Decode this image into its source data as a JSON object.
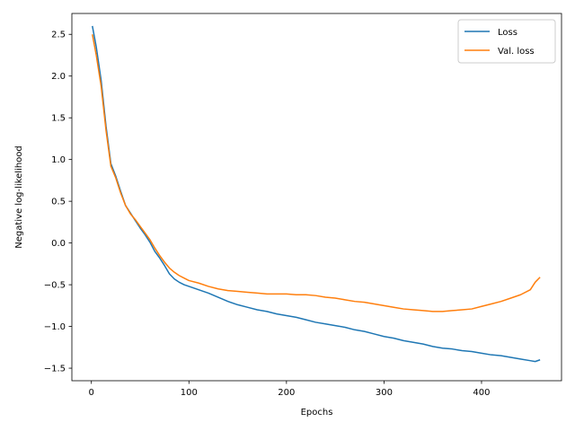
{
  "chart_data": {
    "type": "line",
    "xlabel": "Epochs",
    "ylabel": "Negative log-likelihood",
    "xlim": [
      -20,
      482
    ],
    "ylim": [
      -1.65,
      2.75
    ],
    "xticks": [
      0,
      100,
      200,
      300,
      400
    ],
    "yticks": [
      -1.5,
      -1.0,
      -0.5,
      0.0,
      0.5,
      1.0,
      1.5,
      2.0,
      2.5
    ],
    "ytick_labels": [
      "−1.5",
      "−1.0",
      "−0.5",
      "0.0",
      "0.5",
      "1.0",
      "1.5",
      "2.0",
      "2.5"
    ],
    "grid": false,
    "legend_position": "top-right",
    "series": [
      {
        "name": "Loss",
        "color": "#1f77b4",
        "x": [
          1,
          5,
          10,
          15,
          20,
          25,
          30,
          35,
          40,
          45,
          50,
          55,
          60,
          65,
          70,
          75,
          80,
          85,
          90,
          95,
          100,
          110,
          120,
          130,
          140,
          150,
          160,
          170,
          180,
          190,
          200,
          210,
          220,
          230,
          240,
          250,
          260,
          270,
          280,
          290,
          300,
          310,
          320,
          330,
          340,
          350,
          360,
          370,
          380,
          390,
          400,
          410,
          420,
          430,
          440,
          450,
          455,
          460
        ],
        "y": [
          2.6,
          2.35,
          1.95,
          1.4,
          0.95,
          0.8,
          0.62,
          0.45,
          0.36,
          0.27,
          0.18,
          0.1,
          0.01,
          -0.1,
          -0.18,
          -0.27,
          -0.37,
          -0.43,
          -0.47,
          -0.5,
          -0.52,
          -0.56,
          -0.6,
          -0.65,
          -0.7,
          -0.74,
          -0.77,
          -0.8,
          -0.82,
          -0.85,
          -0.87,
          -0.89,
          -0.92,
          -0.95,
          -0.97,
          -0.99,
          -1.01,
          -1.04,
          -1.06,
          -1.09,
          -1.12,
          -1.14,
          -1.17,
          -1.19,
          -1.21,
          -1.24,
          -1.26,
          -1.27,
          -1.29,
          -1.3,
          -1.32,
          -1.34,
          -1.35,
          -1.37,
          -1.39,
          -1.41,
          -1.42,
          -1.4
        ]
      },
      {
        "name": "Val. loss",
        "color": "#ff7f0e",
        "x": [
          1,
          5,
          10,
          15,
          20,
          25,
          30,
          35,
          40,
          45,
          50,
          55,
          60,
          65,
          70,
          75,
          80,
          85,
          90,
          95,
          100,
          110,
          120,
          130,
          140,
          150,
          160,
          170,
          180,
          190,
          200,
          210,
          220,
          230,
          240,
          250,
          260,
          270,
          280,
          290,
          300,
          310,
          320,
          330,
          340,
          350,
          360,
          370,
          380,
          390,
          400,
          410,
          420,
          430,
          440,
          450,
          455,
          460
        ],
        "y": [
          2.5,
          2.25,
          1.88,
          1.35,
          0.92,
          0.78,
          0.6,
          0.45,
          0.35,
          0.28,
          0.2,
          0.12,
          0.04,
          -0.06,
          -0.15,
          -0.23,
          -0.3,
          -0.35,
          -0.39,
          -0.42,
          -0.45,
          -0.48,
          -0.52,
          -0.55,
          -0.57,
          -0.58,
          -0.59,
          -0.6,
          -0.61,
          -0.61,
          -0.61,
          -0.62,
          -0.62,
          -0.63,
          -0.65,
          -0.66,
          -0.68,
          -0.7,
          -0.71,
          -0.73,
          -0.75,
          -0.77,
          -0.79,
          -0.8,
          -0.81,
          -0.82,
          -0.82,
          -0.81,
          -0.8,
          -0.79,
          -0.76,
          -0.73,
          -0.7,
          -0.66,
          -0.62,
          -0.56,
          -0.47,
          -0.41
        ]
      }
    ]
  }
}
